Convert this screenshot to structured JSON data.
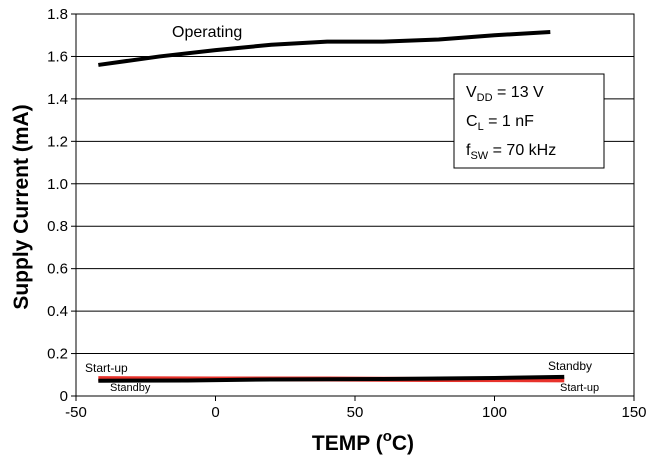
{
  "chart_data": {
    "type": "line",
    "title": "",
    "xlabel": {
      "main": "TEMP (",
      "sup": "o",
      "unit": "C)"
    },
    "ylabel": "Supply Current (mA)",
    "xlim": [
      -50,
      150
    ],
    "ylim": [
      0,
      1.8
    ],
    "xticks": [
      -50,
      0,
      50,
      100,
      150
    ],
    "yticks": [
      0,
      0.2,
      0.4,
      0.6,
      0.8,
      1.0,
      1.2,
      1.4,
      1.6,
      1.8
    ],
    "ytick_labels": [
      "0",
      "0.2",
      "0.4",
      "0.6",
      "0.8",
      "1.0",
      "1.2",
      "1.4",
      "1.6",
      "1.8"
    ],
    "grid": {
      "horizontal": true,
      "vertical": false
    },
    "series": [
      {
        "label": "Operating",
        "color": "#000000",
        "x": [
          -42,
          -20,
          0,
          20,
          40,
          60,
          80,
          100,
          120
        ],
        "y": [
          1.56,
          1.6,
          1.63,
          1.655,
          1.67,
          1.67,
          1.68,
          1.7,
          1.715
        ]
      },
      {
        "label_left": "Start-up",
        "label_right": "Start-up",
        "color": "#e8322b",
        "x": [
          -42,
          0,
          40,
          80,
          125
        ],
        "y": [
          0.082,
          0.08,
          0.08,
          0.078,
          0.076
        ]
      },
      {
        "label_left": "Standby",
        "label_right": "Standby",
        "color": "#000000",
        "x": [
          -42,
          -10,
          20,
          60,
          100,
          125
        ],
        "y": [
          0.072,
          0.073,
          0.078,
          0.08,
          0.085,
          0.09
        ]
      }
    ],
    "conditions": [
      {
        "main": "V",
        "sub": "DD",
        "rest": " = 13 V"
      },
      {
        "main": "C",
        "sub": "L",
        "rest": " = 1 nF"
      },
      {
        "main": "f",
        "sub": "SW",
        "rest": " = 70 kHz"
      }
    ],
    "legend_position": "top-right"
  }
}
